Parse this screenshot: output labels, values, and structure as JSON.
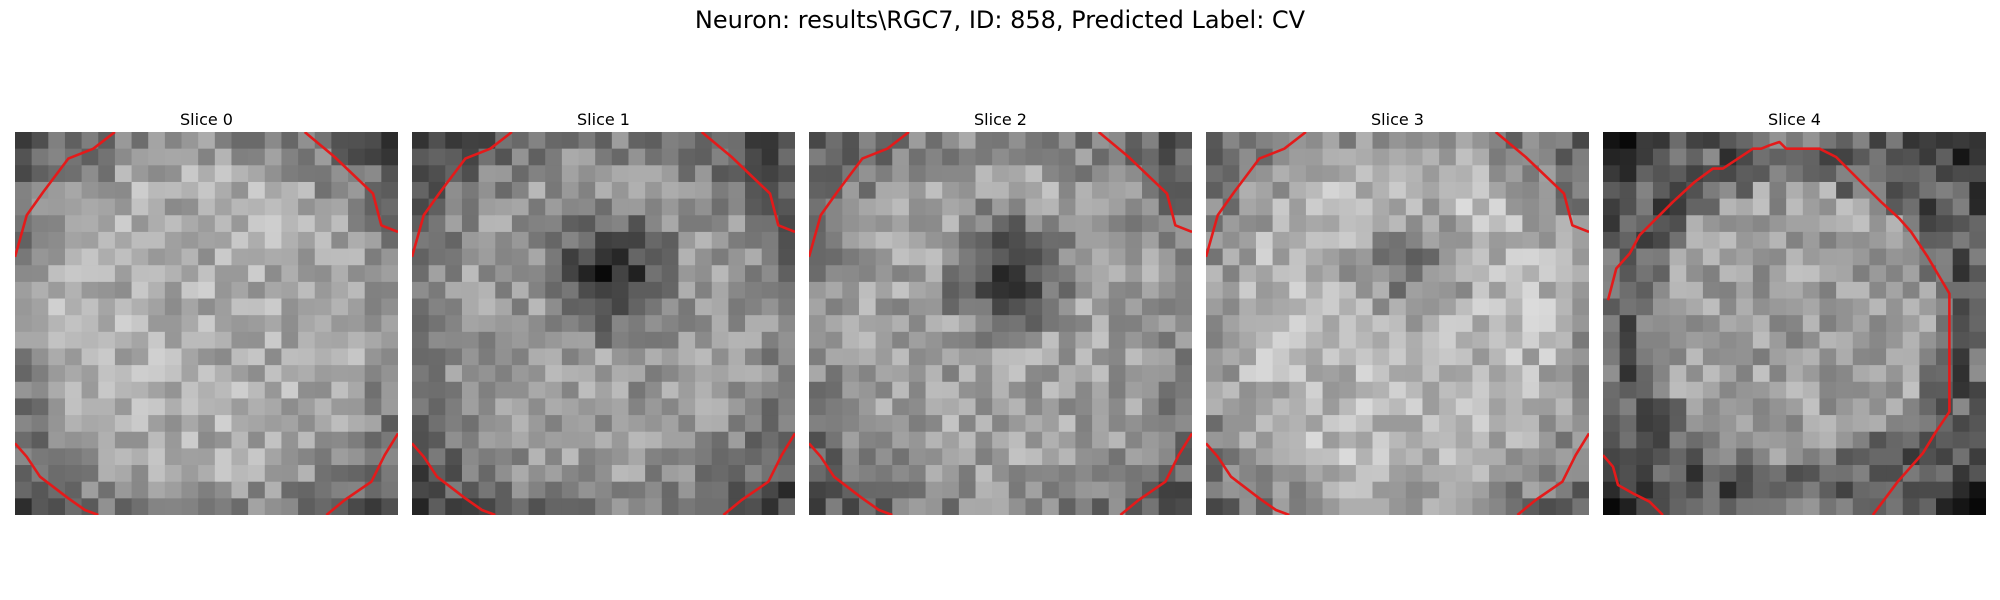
{
  "figure": {
    "title": "Neuron: results\\RGC7, ID: 858, Predicted Label: CV"
  },
  "panels": [
    {
      "title": "Slice 0",
      "dark_blob": null,
      "brightness": 0.68,
      "ring_darkness": 0.45,
      "contour_style": "corners",
      "seed": 101
    },
    {
      "title": "Slice 1",
      "dark_blob": "upper-center",
      "brightness": 0.6,
      "ring_darkness": 0.4,
      "contour_style": "corners",
      "seed": 202
    },
    {
      "title": "Slice 2",
      "dark_blob": "upper-center",
      "brightness": 0.63,
      "ring_darkness": 0.35,
      "contour_style": "corners",
      "seed": 303
    },
    {
      "title": "Slice 3",
      "dark_blob": "upper-center-faint",
      "brightness": 0.72,
      "ring_darkness": 0.4,
      "contour_style": "corners",
      "seed": 404
    },
    {
      "title": "Slice 4",
      "dark_blob": null,
      "brightness": 0.62,
      "ring_darkness": 0.6,
      "contour_style": "octagon",
      "seed": 505
    }
  ],
  "colors": {
    "contour": "#e41a1a"
  }
}
